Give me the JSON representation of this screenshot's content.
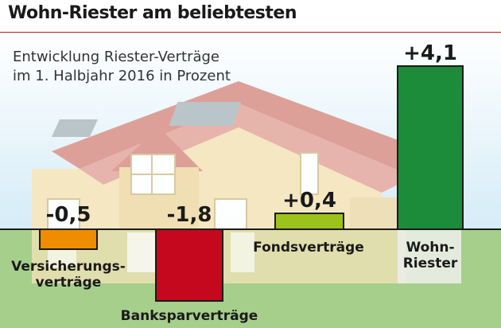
{
  "header": {
    "title": "Wohn-Riester am beliebtesten"
  },
  "subtitle": {
    "line1": "Entwicklung Riester-Verträge",
    "line2": "im 1. Halbjahr 2016 in Prozent"
  },
  "colors": {
    "sky": "#dff0f8",
    "grass": "#a6cf8c",
    "house_wall": "#f6e7bf",
    "house_roof": "#dc9c94",
    "accent_rule": "#c4151c"
  },
  "chart_data": {
    "type": "bar",
    "title": "Wohn-Riester am beliebtesten",
    "subtitle": "Entwicklung Riester-Verträge im 1. Halbjahr 2016 in Prozent",
    "categories": [
      "Versicherungsverträge",
      "Banksparverträge",
      "Fondsverträge",
      "Wohn-Riester"
    ],
    "category_labels": [
      [
        "Versicherungs-",
        "verträge"
      ],
      [
        "Banksparverträge"
      ],
      [
        "Fondsverträge"
      ],
      [
        "Wohn-",
        "Riester"
      ]
    ],
    "values": [
      -0.5,
      -1.8,
      0.4,
      4.1
    ],
    "value_labels": [
      "-0,5",
      "-1,8",
      "+0,4",
      "+4,1"
    ],
    "colors": [
      "#f08c00",
      "#c5081d",
      "#9cc31b",
      "#1c8c3a"
    ],
    "unit": "%",
    "xlabel": "",
    "ylabel": "",
    "grid": false,
    "legend": "none"
  }
}
